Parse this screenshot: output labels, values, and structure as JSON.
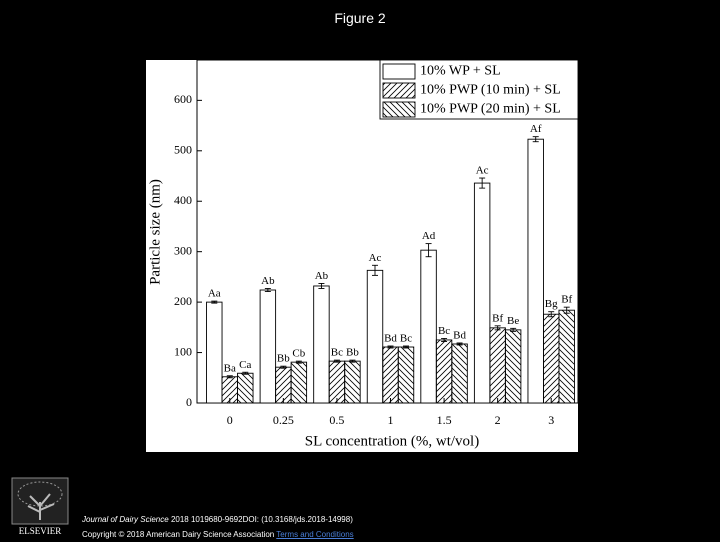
{
  "header": {
    "title": "Figure 2"
  },
  "chart_data": {
    "type": "bar",
    "x_label": "SL concentration (%, wt/vol)",
    "y_label": "Particle size (nm)",
    "categories": [
      "0",
      "0.25",
      "0.5",
      "1",
      "1.5",
      "2",
      "3"
    ],
    "series": [
      {
        "name": "10% WP + SL",
        "color": "#ffffff",
        "pattern": "none",
        "values": [
          200,
          224,
          232,
          263,
          303,
          436,
          523
        ],
        "errors": [
          2,
          3,
          5,
          10,
          13,
          10,
          5
        ],
        "annotations": [
          "Aa",
          "Ab",
          "Ab",
          "Ac",
          "Ad",
          "Ac",
          "Af"
        ]
      },
      {
        "name": "10% PWP (10 min) + SL",
        "color": "#ffffff",
        "pattern": "forward",
        "values": [
          52,
          71,
          83,
          111,
          125,
          149,
          176
        ],
        "errors": [
          2,
          2,
          2,
          2,
          3,
          4,
          5
        ],
        "annotations": [
          "Ba",
          "Bb",
          "Bc",
          "Bd",
          "Bc",
          "Bf",
          "Bg"
        ]
      },
      {
        "name": "10% PWP (20 min) + SL",
        "color": "#ffffff",
        "pattern": "backward",
        "values": [
          59,
          81,
          83,
          111,
          117,
          145,
          184
        ],
        "errors": [
          2,
          2,
          2,
          2,
          2,
          3,
          6
        ],
        "annotations": [
          "Ca",
          "Cb",
          "Bb",
          "Bc",
          "Bd",
          "Be",
          "Bf"
        ]
      }
    ],
    "ylim": [
      0,
      680
    ],
    "yticks": [
      0,
      100,
      200,
      300,
      400,
      500,
      600
    ],
    "grid": false,
    "legend": "top-right"
  },
  "footer": {
    "journal": "Journal of Dairy Science",
    "citation": "2018 1019680-9692DOI: (10.3168/jds.2018-14998)",
    "copyright": "Copyright © 2018 American Dairy Science Association",
    "link": "Terms and Conditions"
  },
  "logo": {
    "text": "ELSEVIER"
  }
}
